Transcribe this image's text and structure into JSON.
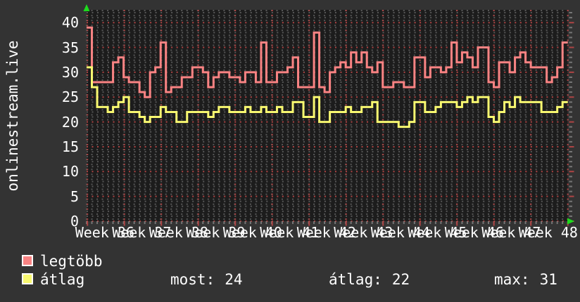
{
  "y_axis_title": "onlinestream.live",
  "y_ticks": [
    "0",
    "5",
    "10",
    "15",
    "20",
    "25",
    "30",
    "35",
    "40"
  ],
  "x_labels": [
    "Week 36",
    "Week 37",
    "Week 38",
    "Week 39",
    "Week 40",
    "Week 41",
    "Week 42",
    "Week 43",
    "Week 44",
    "Week 45",
    "Week 46",
    "Week 47",
    "Week 48"
  ],
  "legend": {
    "items": [
      {
        "label": "legtöbb",
        "color": "#f98383"
      },
      {
        "label": "átlag",
        "color": "#f8f870"
      }
    ],
    "stats": [
      {
        "label": "most:",
        "value": "24"
      },
      {
        "label": "átlag:",
        "value": "22"
      },
      {
        "label": "max:",
        "value": "31"
      }
    ]
  },
  "colors": {
    "background": "#333333",
    "plot_background": "#1c1c1c",
    "text": "#ffffff",
    "grid_minor": "#565656",
    "grid_major": "#ae4444",
    "tick_minor": "#757575",
    "axis_arrow": "#1ddb1d",
    "series_legtobb": "#f98383",
    "series_atlag": "#f8f870"
  },
  "chart_data": {
    "type": "line",
    "style": "step-line (RRDtool LINE2), dark dotted grid, red major gridlines every 5 units vertically and every week horizontally",
    "title": "onlinestream.live",
    "xlabel": "weeks (daily step values, Week 36 to Week 48)",
    "ylabel": "",
    "ylim": [
      0,
      42
    ],
    "x_tick_labels": [
      "Week 36",
      "Week 37",
      "Week 38",
      "Week 39",
      "Week 40",
      "Week 41",
      "Week 42",
      "Week 43",
      "Week 44",
      "Week 45",
      "Week 46",
      "Week 47",
      "Week 48"
    ],
    "legend_position": "bottom-left",
    "series": [
      {
        "name": "legtöbb",
        "color": "#f98383",
        "values": [
          39,
          28,
          28,
          28,
          28,
          32,
          33,
          29,
          28,
          28,
          26,
          25,
          30,
          31,
          36,
          26,
          27,
          27,
          29,
          29,
          31,
          31,
          30,
          27,
          29,
          30,
          30,
          29,
          29,
          28,
          30,
          30,
          28,
          36,
          28,
          28,
          30,
          30,
          31,
          33,
          27,
          27,
          27,
          38,
          27,
          26,
          30,
          31,
          32,
          31,
          34,
          32,
          34,
          31,
          30,
          32,
          27,
          27,
          28,
          28,
          27,
          27,
          33,
          33,
          29,
          31,
          31,
          30,
          31,
          36,
          32,
          34,
          33,
          31,
          35,
          35,
          28,
          27,
          32,
          32,
          30,
          33,
          34,
          32,
          31,
          31,
          31,
          28,
          29,
          31,
          36
        ]
      },
      {
        "name": "átlag",
        "color": "#f8f870",
        "values": [
          31,
          27,
          23,
          23,
          22,
          23,
          24,
          25,
          22,
          22,
          21,
          20,
          21,
          21,
          23,
          22,
          22,
          20,
          20,
          22,
          22,
          22,
          22,
          21,
          22,
          23,
          23,
          22,
          22,
          22,
          23,
          22,
          22,
          23,
          22,
          22,
          23,
          22,
          22,
          24,
          24,
          21,
          21,
          25,
          20,
          20,
          22,
          22,
          22,
          23,
          22,
          22,
          23,
          23,
          24,
          20,
          20,
          20,
          20,
          19,
          19,
          20,
          24,
          24,
          22,
          22,
          23,
          24,
          24,
          24,
          23,
          24,
          25,
          24,
          25,
          25,
          21,
          20,
          22,
          24,
          23,
          25,
          24,
          24,
          24,
          24,
          22,
          22,
          22,
          23,
          24
        ]
      }
    ],
    "stats_footer": {
      "most": 24,
      "átlag": 22,
      "max": 31
    }
  }
}
